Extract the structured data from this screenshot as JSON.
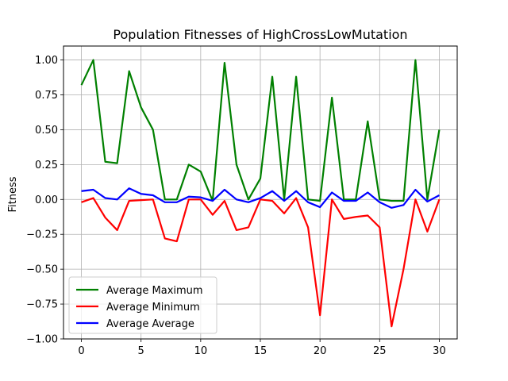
{
  "chart_data": {
    "type": "line",
    "title": "Population Fitnesses of HighCrossLowMutation",
    "xlabel": "",
    "ylabel": "Fitness",
    "xlim": [
      -1.5,
      31.5
    ],
    "ylim": [
      -1.0,
      1.1
    ],
    "grid": true,
    "legend_position": "lower-left",
    "x_ticks": [
      0,
      5,
      10,
      15,
      20,
      25,
      30
    ],
    "x_tick_labels": [
      "0",
      "5",
      "10",
      "15",
      "20",
      "25",
      "30"
    ],
    "y_ticks": [
      -1.0,
      -0.75,
      -0.5,
      -0.25,
      0.0,
      0.25,
      0.5,
      0.75,
      1.0
    ],
    "y_tick_labels": [
      "−1.00",
      "−0.75",
      "−0.50",
      "−0.25",
      "0.00",
      "0.25",
      "0.50",
      "0.75",
      "1.00"
    ],
    "x": [
      0,
      1,
      2,
      3,
      4,
      5,
      6,
      7,
      8,
      9,
      10,
      11,
      12,
      13,
      14,
      15,
      16,
      17,
      18,
      19,
      20,
      21,
      22,
      23,
      24,
      25,
      26,
      27,
      28,
      29,
      30
    ],
    "series": [
      {
        "name": "Average Maximum",
        "color": "#008000",
        "values": [
          0.82,
          1.0,
          0.27,
          0.26,
          0.92,
          0.66,
          0.5,
          0.0,
          0.0,
          0.25,
          0.2,
          -0.01,
          0.98,
          0.25,
          0.0,
          0.15,
          0.88,
          0.0,
          0.88,
          0.0,
          -0.01,
          0.73,
          0.0,
          0.0,
          0.56,
          0.0,
          -0.01,
          -0.01,
          1.0,
          0.0,
          0.5
        ]
      },
      {
        "name": "Average Minimum",
        "color": "#ff0000",
        "values": [
          -0.02,
          0.01,
          -0.13,
          -0.22,
          -0.01,
          -0.005,
          0.0,
          -0.28,
          -0.3,
          0.0,
          0.0,
          -0.11,
          -0.01,
          -0.22,
          -0.2,
          0.0,
          -0.01,
          -0.1,
          0.01,
          -0.2,
          -0.83,
          0.0,
          -0.14,
          -0.125,
          -0.115,
          -0.2,
          -0.91,
          -0.5,
          0.0,
          -0.23,
          0.0
        ]
      },
      {
        "name": "Average Average",
        "color": "#0000ff",
        "values": [
          0.06,
          0.07,
          0.01,
          0.0,
          0.08,
          0.04,
          0.03,
          -0.02,
          -0.02,
          0.02,
          0.015,
          -0.01,
          0.07,
          0.0,
          -0.02,
          0.01,
          0.06,
          -0.01,
          0.06,
          -0.02,
          -0.055,
          0.05,
          -0.01,
          -0.01,
          0.05,
          -0.02,
          -0.06,
          -0.04,
          0.07,
          -0.015,
          0.03
        ]
      }
    ]
  }
}
